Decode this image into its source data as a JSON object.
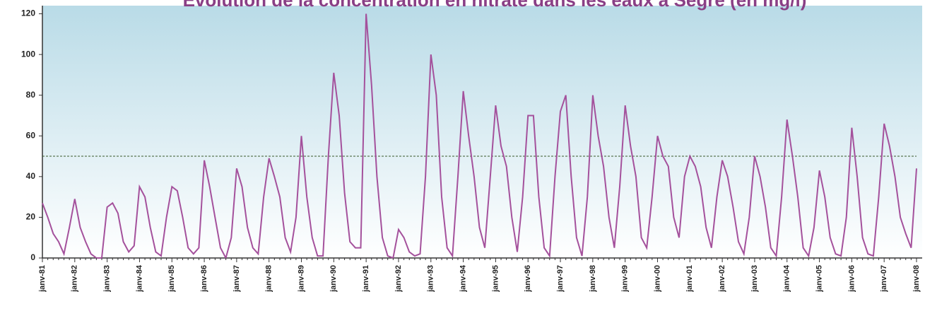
{
  "chart_data": {
    "type": "line",
    "title": "Évolution de la concentration en nitrate dans les eaux à Segré (en mg/l)",
    "categories": [
      "janv-81",
      null,
      null,
      null,
      null,
      null,
      "janv-82",
      null,
      null,
      null,
      null,
      null,
      "janv-83",
      null,
      null,
      null,
      null,
      null,
      "janv-84",
      null,
      null,
      null,
      null,
      null,
      "janv-85",
      null,
      null,
      null,
      null,
      null,
      "janv-86",
      null,
      null,
      null,
      null,
      null,
      "janv-87",
      null,
      null,
      null,
      null,
      null,
      "janv-88",
      null,
      null,
      null,
      null,
      null,
      "janv-89",
      null,
      null,
      null,
      null,
      null,
      "janv-90",
      null,
      null,
      null,
      null,
      null,
      "janv-91",
      null,
      null,
      null,
      null,
      null,
      "janv-92",
      null,
      null,
      null,
      null,
      null,
      "janv-93",
      null,
      null,
      null,
      null,
      null,
      "janv-94",
      null,
      null,
      null,
      null,
      null,
      "janv-95",
      null,
      null,
      null,
      null,
      null,
      "janv-96",
      null,
      null,
      null,
      null,
      null,
      "janv-97",
      null,
      null,
      null,
      null,
      null,
      "janv-98",
      null,
      null,
      null,
      null,
      null,
      "janv-99",
      null,
      null,
      null,
      null,
      null,
      "janv-00",
      null,
      null,
      null,
      null,
      null,
      "janv-01",
      null,
      null,
      null,
      null,
      null,
      "janv-02",
      null,
      null,
      null,
      null,
      null,
      "janv-03",
      null,
      null,
      null,
      null,
      null,
      "janv-04",
      null,
      null,
      null,
      null,
      null,
      "janv-05",
      null,
      null,
      null,
      null,
      null,
      "janv-06",
      null,
      null,
      null,
      null,
      null,
      "janv-07",
      null,
      null,
      null,
      null,
      null,
      "janv-08"
    ],
    "series": [
      {
        "color": "#a4519c",
        "values": [
          27,
          20,
          12,
          8,
          2,
          15,
          29,
          15,
          8,
          2,
          0,
          0,
          25,
          27,
          22,
          8,
          3,
          6,
          35,
          30,
          15,
          3,
          1,
          20,
          35,
          33,
          20,
          5,
          2,
          5,
          48,
          35,
          20,
          5,
          0,
          10,
          44,
          35,
          15,
          5,
          2,
          30,
          49,
          40,
          30,
          10,
          3,
          20,
          60,
          30,
          10,
          1,
          1,
          50,
          91,
          70,
          32,
          8,
          5,
          5,
          120,
          85,
          40,
          10,
          1,
          0,
          14,
          10,
          3,
          1,
          2,
          40,
          100,
          80,
          30,
          5,
          1,
          40,
          82,
          60,
          40,
          15,
          5,
          40,
          75,
          55,
          45,
          20,
          3,
          30,
          70,
          70,
          30,
          5,
          1,
          40,
          72,
          80,
          40,
          10,
          1,
          30,
          80,
          60,
          45,
          20,
          5,
          35,
          75,
          55,
          40,
          10,
          5,
          30,
          60,
          50,
          45,
          20,
          10,
          40,
          50,
          45,
          35,
          15,
          5,
          30,
          48,
          40,
          25,
          8,
          2,
          20,
          50,
          40,
          25,
          5,
          1,
          30,
          68,
          50,
          30,
          5,
          1,
          15,
          43,
          30,
          10,
          2,
          1,
          20,
          64,
          40,
          10,
          2,
          1,
          30,
          66,
          55,
          40,
          20,
          12,
          5,
          44
        ]
      }
    ],
    "threshold": 50,
    "ylim": [
      0,
      124
    ],
    "yticks": [
      0,
      20,
      40,
      60,
      80,
      100,
      120
    ]
  }
}
